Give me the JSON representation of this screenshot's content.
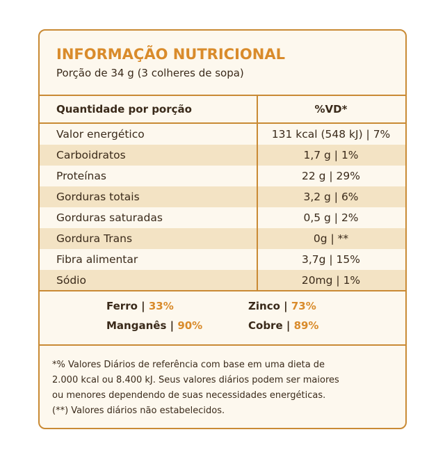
{
  "header": {
    "title": "INFORMAÇÃO NUTRICIONAL",
    "subtitle": "Porção de 34 g (3 colheres de sopa)"
  },
  "table": {
    "columns": [
      "Quantidade por porção",
      "%VD*"
    ],
    "rows": [
      [
        "Valor energético",
        "131 kcal (548 kJ) | 7%"
      ],
      [
        "Carboidratos",
        "1,7 g | 1%"
      ],
      [
        "Proteínas",
        "22 g | 29%"
      ],
      [
        "Gorduras totais",
        "3,2 g | 6%"
      ],
      [
        "Gorduras saturadas",
        "0,5 g | 2%"
      ],
      [
        "Gordura Trans",
        "0g | **"
      ],
      [
        "Fibra alimentar",
        "3,7g | 15%"
      ],
      [
        "Sódio",
        "20mg | 1%"
      ]
    ]
  },
  "minerals": [
    {
      "name": "Ferro |",
      "value": "33%"
    },
    {
      "name": "Zinco |",
      "value": "73%"
    },
    {
      "name": "Manganês |",
      "value": "90%"
    },
    {
      "name": "Cobre |",
      "value": "89%"
    }
  ],
  "notes": [
    "*% Valores Diários de referência com base em uma dieta de",
    "2.000 kcal ou 8.400 kJ. Seus valores diários podem ser maiores",
    "ou menores dependendo de suas necessidades energéticas.",
    "(**) Valores diários não estabelecidos."
  ]
}
